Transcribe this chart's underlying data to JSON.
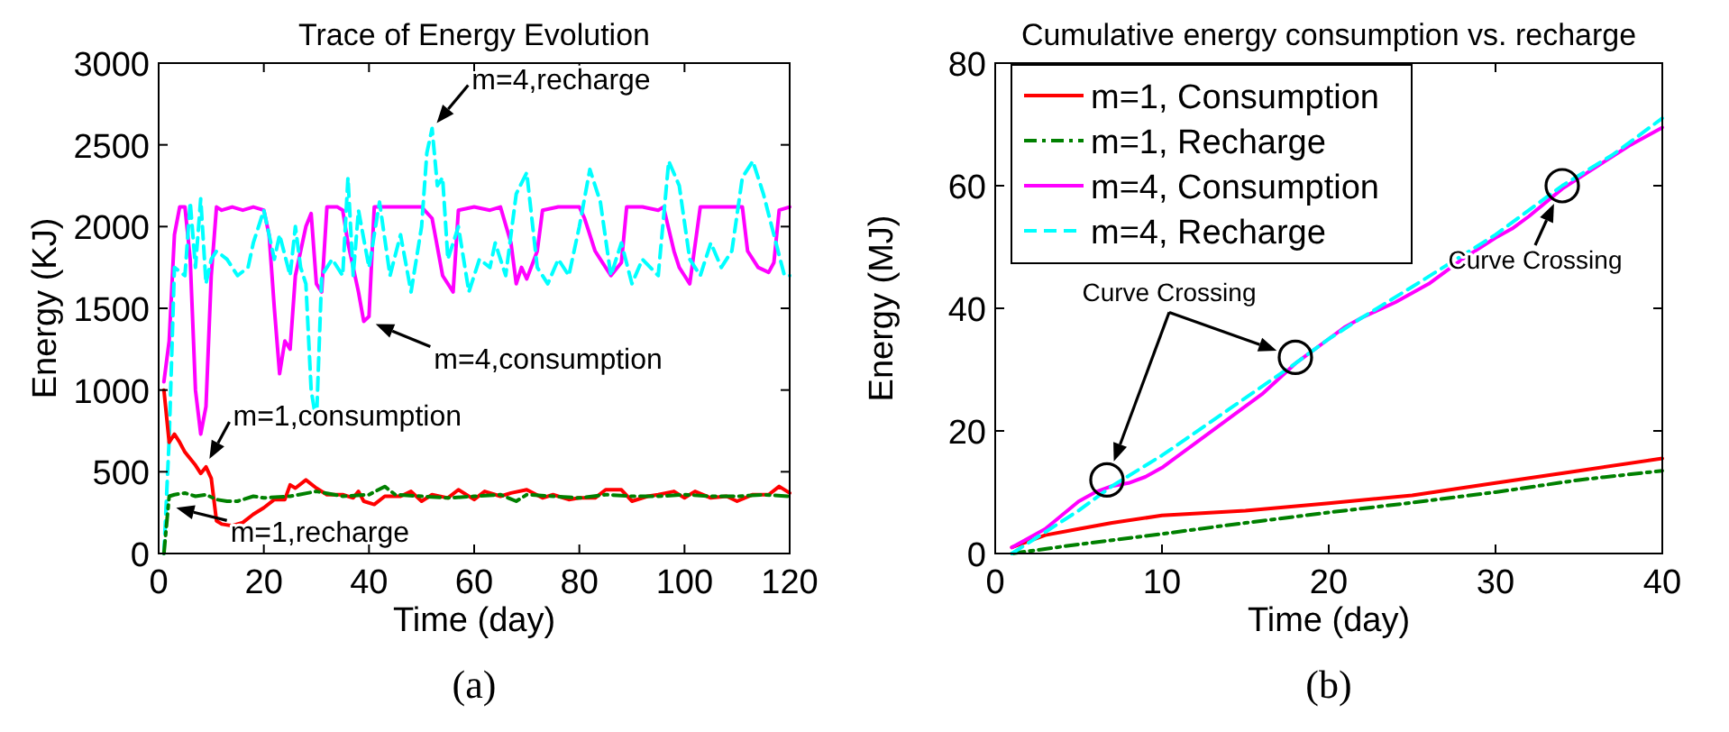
{
  "chart_data": [
    {
      "type": "line",
      "title": "Trace of Energy Evolution",
      "xlabel": "Time (day)",
      "ylabel": "Energy (KJ)",
      "xlim": [
        0,
        120
      ],
      "ylim": [
        0,
        3000
      ],
      "xticks": [
        0,
        20,
        40,
        60,
        80,
        100,
        120
      ],
      "yticks": [
        0,
        500,
        1000,
        1500,
        2000,
        2500,
        3000
      ],
      "series": [
        {
          "color": "#ff00ff",
          "line_style": "solid",
          "x": [
            1,
            2,
            3,
            4,
            5,
            6,
            7,
            8,
            9,
            10,
            11,
            12,
            14,
            16,
            18,
            20,
            21,
            22,
            23,
            24,
            25,
            26,
            28,
            29,
            30,
            31,
            32,
            34,
            35,
            36,
            38,
            39,
            40,
            41,
            45,
            50,
            52,
            54,
            56,
            57,
            60,
            63,
            65,
            67,
            68,
            69,
            70,
            72,
            73,
            76,
            80,
            81,
            83,
            84,
            86,
            88,
            89,
            92,
            95,
            96,
            98,
            99,
            100,
            101,
            103,
            108,
            111,
            112,
            114,
            116,
            117,
            118,
            120
          ],
          "values": [
            1050,
            1300,
            1950,
            2120,
            2120,
            1800,
            1000,
            730,
            900,
            1700,
            2120,
            2100,
            2120,
            2100,
            2120,
            2100,
            1950,
            1500,
            1100,
            1300,
            1250,
            1700,
            2000,
            2080,
            1650,
            1600,
            2120,
            2120,
            2100,
            1900,
            1600,
            1420,
            1450,
            2120,
            2120,
            2120,
            2050,
            1700,
            1600,
            2100,
            2120,
            2100,
            2120,
            1900,
            1650,
            1750,
            1680,
            1850,
            2100,
            2120,
            2120,
            2050,
            1850,
            1800,
            1700,
            1780,
            2120,
            2120,
            2100,
            2120,
            1850,
            1750,
            1700,
            1650,
            2120,
            2120,
            2120,
            1850,
            1750,
            1720,
            1780,
            2100,
            2120
          ]
        },
        {
          "color": "#00ffff",
          "line_style": "dashed",
          "x": [
            1,
            2,
            3,
            5,
            6,
            7,
            8,
            9,
            10,
            11,
            13,
            15,
            17,
            18,
            20,
            22,
            23,
            25,
            26,
            27,
            28,
            29,
            30,
            31,
            33,
            35,
            36,
            37,
            38,
            40,
            42,
            44,
            46,
            48,
            50,
            51,
            52,
            53,
            54,
            55,
            57,
            59,
            61,
            63,
            64,
            66,
            68,
            70,
            72,
            74,
            76,
            78,
            80,
            82,
            84,
            86,
            88,
            90,
            92,
            95,
            97,
            99,
            101,
            103,
            105,
            107,
            109,
            111,
            113,
            115,
            117,
            119,
            120
          ],
          "values": [
            0,
            700,
            1750,
            1700,
            2150,
            1750,
            2170,
            1650,
            1800,
            1850,
            1800,
            1700,
            1750,
            1900,
            2100,
            1800,
            1950,
            1700,
            2000,
            1750,
            1650,
            1000,
            800,
            1700,
            1800,
            1700,
            2300,
            1700,
            2100,
            1750,
            2150,
            1700,
            1950,
            1600,
            2000,
            2450,
            2600,
            2250,
            2300,
            1800,
            2000,
            1600,
            1800,
            1750,
            1900,
            1700,
            2200,
            2330,
            1750,
            1650,
            1800,
            1700,
            2000,
            2350,
            2150,
            1700,
            1900,
            1650,
            1800,
            1700,
            2400,
            2250,
            1800,
            1700,
            1900,
            1750,
            1850,
            2300,
            2400,
            2200,
            1950,
            1700,
            1700
          ]
        },
        {
          "color": "#ff0000",
          "line_style": "solid",
          "x": [
            1,
            2,
            3,
            4,
            5,
            6,
            7,
            8,
            9,
            10,
            11,
            12,
            14,
            16,
            18,
            20,
            22,
            24,
            25,
            26,
            28,
            30,
            32,
            35,
            37,
            38,
            39,
            41,
            43,
            46,
            48,
            50,
            52,
            55,
            57,
            60,
            62,
            65,
            67,
            70,
            73,
            75,
            78,
            80,
            83,
            85,
            88,
            90,
            93,
            95,
            98,
            100,
            102,
            105,
            108,
            110,
            113,
            116,
            118,
            120
          ],
          "values": [
            1000,
            680,
            730,
            680,
            620,
            580,
            540,
            490,
            530,
            460,
            200,
            180,
            170,
            190,
            240,
            280,
            330,
            330,
            420,
            400,
            450,
            400,
            360,
            360,
            340,
            380,
            320,
            300,
            350,
            350,
            380,
            320,
            360,
            340,
            390,
            330,
            380,
            350,
            370,
            390,
            340,
            360,
            330,
            340,
            340,
            390,
            390,
            320,
            350,
            360,
            380,
            340,
            380,
            340,
            350,
            320,
            360,
            360,
            410,
            370
          ]
        },
        {
          "color": "#008000",
          "line_style": "dashdot",
          "x": [
            1,
            2,
            3,
            5,
            7,
            9,
            11,
            13,
            15,
            18,
            20,
            25,
            30,
            35,
            40,
            43,
            45,
            50,
            55,
            60,
            65,
            68,
            70,
            75,
            80,
            85,
            90,
            95,
            100,
            105,
            110,
            115,
            120
          ],
          "values": [
            0,
            350,
            360,
            370,
            350,
            360,
            330,
            320,
            320,
            350,
            340,
            350,
            380,
            350,
            360,
            410,
            360,
            350,
            340,
            350,
            360,
            320,
            360,
            350,
            340,
            360,
            350,
            350,
            360,
            350,
            350,
            360,
            350
          ]
        }
      ],
      "annotations": [
        {
          "text": "m=4,recharge",
          "x": 52,
          "y": 2600
        },
        {
          "text": "m=4,consumption",
          "x": 40,
          "y": 1420
        },
        {
          "text": "m=1,consumption",
          "x": 9,
          "y": 540
        },
        {
          "text": "m=1,recharge",
          "x": 2,
          "y": 290
        },
        "(a)"
      ]
    },
    {
      "type": "line",
      "title": "Cumulative energy consumption vs. recharge",
      "xlabel": "Time (day)",
      "ylabel": "Energy (MJ)",
      "xlim": [
        0,
        40
      ],
      "ylim": [
        0,
        80
      ],
      "xticks": [
        0,
        10,
        20,
        30,
        40
      ],
      "yticks": [
        0,
        20,
        40,
        60,
        80
      ],
      "legend": "top left",
      "series": [
        {
          "name": "m=1, Consumption",
          "color": "#ff0000",
          "line_style": "solid",
          "x": [
            1,
            3,
            5,
            7,
            10,
            15,
            20,
            25,
            30,
            35,
            40
          ],
          "values": [
            1,
            3,
            4,
            5,
            6.2,
            7,
            8.2,
            9.5,
            11.5,
            13.5,
            15.5
          ]
        },
        {
          "name": "m=1, Recharge",
          "color": "#008000",
          "line_style": "dashdot",
          "x": [
            1,
            5,
            10,
            15,
            20,
            25,
            30,
            35,
            40
          ],
          "values": [
            0,
            1.5,
            3.2,
            5,
            6.7,
            8.3,
            10,
            12,
            13.5
          ]
        },
        {
          "name": "m=4, Consumption",
          "color": "#ff00ff",
          "line_style": "solid",
          "x": [
            1,
            3,
            5,
            6,
            7,
            8,
            9,
            10,
            12,
            14,
            16,
            18,
            20,
            21,
            22,
            24,
            26,
            28,
            30,
            31,
            32,
            34,
            36,
            38,
            40
          ],
          "values": [
            1,
            4,
            8.5,
            10,
            11,
            11.5,
            12.5,
            14,
            18,
            22,
            26,
            31,
            35,
            37,
            38.5,
            41,
            44,
            48,
            51.5,
            53,
            55,
            59.5,
            63,
            66.5,
            69.5
          ]
        },
        {
          "name": "m=4, Recharge",
          "color": "#00ffff",
          "line_style": "dashed",
          "x": [
            1,
            3,
            5,
            7,
            10,
            14,
            18,
            20,
            22,
            25,
            30,
            34,
            37,
            40
          ],
          "values": [
            0,
            3.5,
            7,
            11,
            16,
            23.5,
            31,
            35,
            38.5,
            43.5,
            52,
            60,
            65,
            71
          ]
        },
        {
          "type": "scatter",
          "marker": "circle",
          "color": "#000000",
          "x": [
            6.7,
            18,
            34
          ],
          "values": [
            12,
            32,
            60
          ]
        }
      ],
      "annotations": [
        {
          "text": "Curve Crossing",
          "x": 18,
          "y": 32
        },
        {
          "text": "Curve Crossing",
          "x": 34,
          "y": 60
        },
        "(b)"
      ]
    }
  ]
}
